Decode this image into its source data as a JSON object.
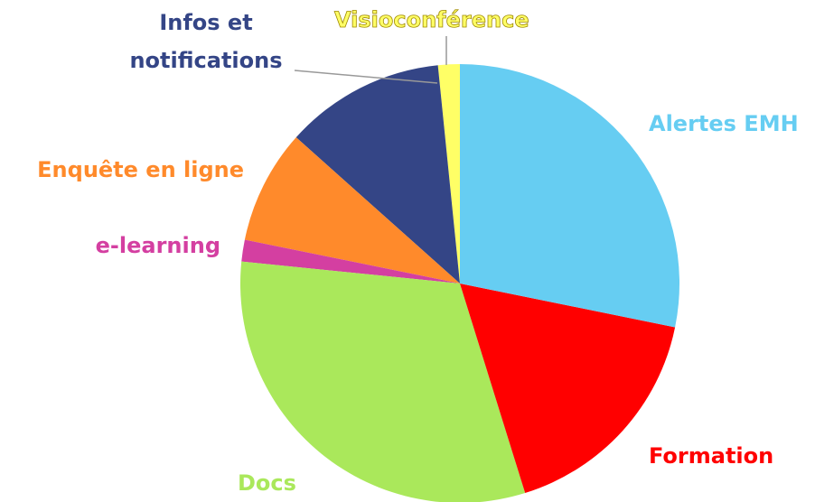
{
  "chart_data": {
    "type": "pie",
    "categories": [
      "Alertes EMH",
      "Formation",
      "Docs",
      "e-learning",
      "Enquête en ligne",
      "Infos et notifications",
      "Visioconférence"
    ],
    "values": [
      28.2,
      17,
      31.4,
      1.6,
      8.4,
      11.8,
      1.6
    ],
    "colors": [
      "#66cdf2",
      "#ff0000",
      "#aae85b",
      "#d43fa1",
      "#ff8a2b",
      "#344586",
      "#ffff66"
    ]
  }
}
